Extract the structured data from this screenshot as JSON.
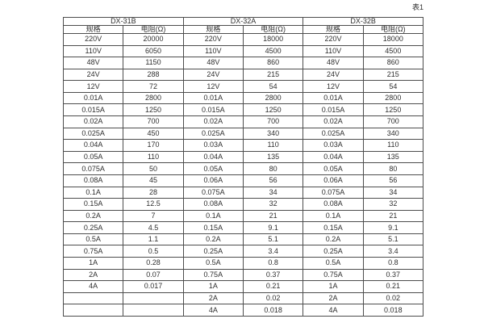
{
  "page": {
    "table_label": "表1"
  },
  "table": {
    "groups": [
      {
        "name": "DX-31B"
      },
      {
        "name": "DX-32A"
      },
      {
        "name": "DX-32B"
      }
    ],
    "subheaders": {
      "spec": "规格",
      "resistance": "电阻(Ω)"
    },
    "rows": [
      [
        "220V",
        "20000",
        "220V",
        "18000",
        "220V",
        "18000"
      ],
      [
        "110V",
        "6050",
        "110V",
        "4500",
        "110V",
        "4500"
      ],
      [
        "48V",
        "1150",
        "48V",
        "860",
        "48V",
        "860"
      ],
      [
        "24V",
        "288",
        "24V",
        "215",
        "24V",
        "215"
      ],
      [
        "12V",
        "72",
        "12V",
        "54",
        "12V",
        "54"
      ],
      [
        "0.01A",
        "2800",
        "0.01A",
        "2800",
        "0.01A",
        "2800"
      ],
      [
        "0.015A",
        "1250",
        "0.015A",
        "1250",
        "0.015A",
        "1250"
      ],
      [
        "0.02A",
        "700",
        "0.02A",
        "700",
        "0.02A",
        "700"
      ],
      [
        "0.025A",
        "450",
        "0.025A",
        "340",
        "0.025A",
        "340"
      ],
      [
        "0.04A",
        "170",
        "0.03A",
        "110",
        "0.03A",
        "110"
      ],
      [
        "0.05A",
        "110",
        "0.04A",
        "135",
        "0.04A",
        "135"
      ],
      [
        "0.075A",
        "50",
        "0.05A",
        "80",
        "0.05A",
        "80"
      ],
      [
        "0.08A",
        "45",
        "0.06A",
        "56",
        "0.06A",
        "56"
      ],
      [
        "0.1A",
        "28",
        "0.075A",
        "34",
        "0.075A",
        "34"
      ],
      [
        "0.15A",
        "12.5",
        "0.08A",
        "32",
        "0.08A",
        "32"
      ],
      [
        "0.2A",
        "7",
        "0.1A",
        "21",
        "0.1A",
        "21"
      ],
      [
        "0.25A",
        "4.5",
        "0.15A",
        "9.1",
        "0.15A",
        "9.1"
      ],
      [
        "0.5A",
        "1.1",
        "0.2A",
        "5.1",
        "0.2A",
        "5.1"
      ],
      [
        "0.75A",
        "0.5",
        "0.25A",
        "3.4",
        "0.25A",
        "3.4"
      ],
      [
        "1A",
        "0.28",
        "0.5A",
        "0.8",
        "0.5A",
        "0.8"
      ],
      [
        "2A",
        "0.07",
        "0.75A",
        "0.37",
        "0.75A",
        "0.37"
      ],
      [
        "4A",
        "0.017",
        "1A",
        "0.21",
        "1A",
        "0.21"
      ],
      [
        "",
        "",
        "2A",
        "0.02",
        "2A",
        "0.02"
      ],
      [
        "",
        "",
        "4A",
        "0.018",
        "4A",
        "0.018"
      ]
    ],
    "colors": {
      "border": "#4d4d4d",
      "text": "#2f2f2f",
      "background": "#ffffff"
    }
  }
}
